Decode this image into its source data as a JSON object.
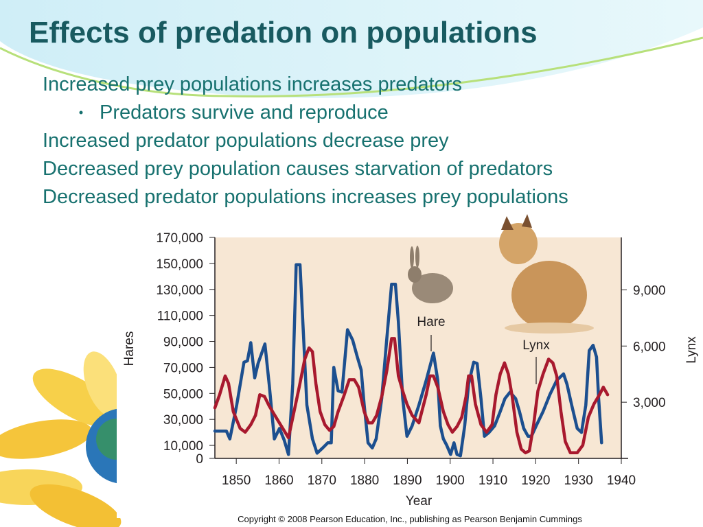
{
  "title": "Effects of predation on populations",
  "body": [
    {
      "text": "Increased prey populations increases predators",
      "sub": [
        "Predators survive and reproduce"
      ]
    },
    {
      "text": "Increased predator populations decrease prey"
    },
    {
      "text": "Decreased prey population causes starvation of predators"
    },
    {
      "text": "Decreased predator populations increases prey populations"
    }
  ],
  "copyright": "Copyright © 2008 Pearson Education, Inc., publishing as Pearson Benjamin Cummings",
  "chart_data": {
    "type": "line",
    "xlabel": "Year",
    "ylabel": "Hares",
    "y2label": "Lynx",
    "xlim": [
      1845,
      1940
    ],
    "xticks": [
      1850,
      1860,
      1870,
      1880,
      1890,
      1900,
      1910,
      1920,
      1930,
      1940
    ],
    "ylim": [
      0,
      170000
    ],
    "yticks": [
      0,
      {
        "value": 10000,
        "label": "10,000"
      },
      {
        "value": 30000,
        "label": "30,000"
      },
      {
        "value": 50000,
        "label": "50,000"
      },
      {
        "value": 70000,
        "label": "70,000"
      },
      {
        "value": 90000,
        "label": "90,000"
      },
      {
        "value": 110000,
        "label": "110,000"
      },
      {
        "value": 130000,
        "label": "130,000"
      },
      {
        "value": 150000,
        "label": "150,000"
      },
      {
        "value": 170000,
        "label": "170,000"
      }
    ],
    "y2lim": [
      0,
      11800
    ],
    "y2ticks": [
      {
        "value": 3000,
        "label": "3,000"
      },
      {
        "value": 6000,
        "label": "6,000"
      },
      {
        "value": 9000,
        "label": "9,000"
      }
    ],
    "annotations": [
      "Hare",
      "Lynx"
    ],
    "series": [
      {
        "name": "Hare",
        "color": "#1c4f8f",
        "x": [
          1845.0,
          1847.7,
          1848.5,
          1850.1,
          1851.8,
          1852.6,
          1853.4,
          1854.3,
          1855.1,
          1856.7,
          1857.7,
          1858.9,
          1860.1,
          1861.2,
          1862.2,
          1863.2,
          1864.0,
          1864.9,
          1865.8,
          1866.5,
          1867.8,
          1868.9,
          1870.2,
          1871.4,
          1872.2,
          1872.8,
          1873.8,
          1874.7,
          1876.0,
          1877.2,
          1878.3,
          1879.2,
          1879.9,
          1880.8,
          1881.8,
          1882.7,
          1884.0,
          1885.1,
          1886.3,
          1887.2,
          1887.9,
          1888.9,
          1889.9,
          1891.1,
          1892.7,
          1894.4,
          1896.1,
          1897.1,
          1897.7,
          1898.4,
          1899.2,
          1900.1,
          1900.9,
          1901.6,
          1902.4,
          1903.4,
          1904.3,
          1905.5,
          1906.3,
          1907.2,
          1908.0,
          1909.1,
          1910.4,
          1911.7,
          1912.8,
          1914.0,
          1915.3,
          1916.2,
          1917.2,
          1918.2,
          1919.0,
          1920.1,
          1921.7,
          1923.3,
          1924.9,
          1926.5,
          1927.3,
          1928.4,
          1929.7,
          1930.7,
          1931.7,
          1932.5,
          1933.4,
          1934.2,
          1934.7,
          1935.4
        ],
        "values": [
          21000,
          21000,
          15000,
          41000,
          74000,
          75000,
          89000,
          62000,
          73000,
          88000,
          57000,
          15000,
          23000,
          14000,
          3000,
          57000,
          149000,
          149000,
          89000,
          41000,
          15000,
          4000,
          8000,
          12000,
          12000,
          70000,
          52000,
          51000,
          99000,
          91000,
          78000,
          68000,
          41000,
          12000,
          8000,
          15000,
          46000,
          89000,
          134000,
          134000,
          105000,
          46000,
          17000,
          25000,
          41000,
          60000,
          81000,
          60000,
          25000,
          15000,
          10000,
          3000,
          12000,
          3000,
          2000,
          25000,
          57000,
          74000,
          73000,
          46000,
          17000,
          20000,
          25000,
          36000,
          46000,
          51000,
          46000,
          36000,
          23000,
          17000,
          17000,
          25000,
          36000,
          49000,
          60000,
          65000,
          57000,
          41000,
          23000,
          20000,
          41000,
          83000,
          87000,
          78000,
          46000,
          12000
        ]
      },
      {
        "name": "Lynx",
        "color": "#a8192e",
        "axis": "y2",
        "x": [
          1845.0,
          1846.1,
          1847.4,
          1848.2,
          1849.3,
          1850.9,
          1852.1,
          1853.4,
          1854.5,
          1855.5,
          1856.6,
          1857.7,
          1859.0,
          1860.6,
          1862.2,
          1863.5,
          1864.7,
          1866.0,
          1867.0,
          1867.8,
          1868.6,
          1869.6,
          1870.7,
          1871.8,
          1872.8,
          1873.8,
          1875.1,
          1876.4,
          1877.6,
          1878.6,
          1879.9,
          1880.9,
          1881.8,
          1882.8,
          1884.1,
          1885.2,
          1886.3,
          1887.0,
          1887.9,
          1888.9,
          1889.9,
          1891.1,
          1892.7,
          1894.4,
          1895.3,
          1896.1,
          1897.1,
          1898.4,
          1899.5,
          1900.5,
          1901.6,
          1902.7,
          1903.7,
          1904.3,
          1905.0,
          1905.9,
          1907.2,
          1908.5,
          1909.8,
          1910.7,
          1911.7,
          1912.7,
          1913.6,
          1914.5,
          1915.6,
          1916.6,
          1917.6,
          1918.5,
          1919.5,
          1920.5,
          1921.7,
          1923.0,
          1924.0,
          1924.9,
          1925.9,
          1926.9,
          1928.1,
          1929.7,
          1931.0,
          1932.3,
          1933.6,
          1934.9,
          1935.8,
          1936.8
        ],
        "values": [
          2700,
          3400,
          4400,
          4000,
          2500,
          1600,
          1400,
          1800,
          2300,
          3400,
          3300,
          2800,
          2300,
          1700,
          1100,
          2500,
          3800,
          5300,
          5900,
          5700,
          4000,
          2500,
          1800,
          1500,
          1700,
          2500,
          3300,
          4200,
          4200,
          3800,
          2500,
          1900,
          1900,
          2300,
          3400,
          4700,
          6400,
          6400,
          4400,
          3600,
          2900,
          2300,
          1900,
          3400,
          4400,
          4400,
          3800,
          2500,
          1800,
          1400,
          1700,
          2200,
          3300,
          4400,
          4400,
          2900,
          1800,
          1400,
          1800,
          3400,
          4500,
          5100,
          4500,
          3300,
          1400,
          500,
          300,
          400,
          1800,
          3600,
          4500,
          5300,
          5100,
          4400,
          2500,
          900,
          300,
          300,
          700,
          2200,
          2900,
          3400,
          3800,
          3400
        ]
      }
    ]
  }
}
